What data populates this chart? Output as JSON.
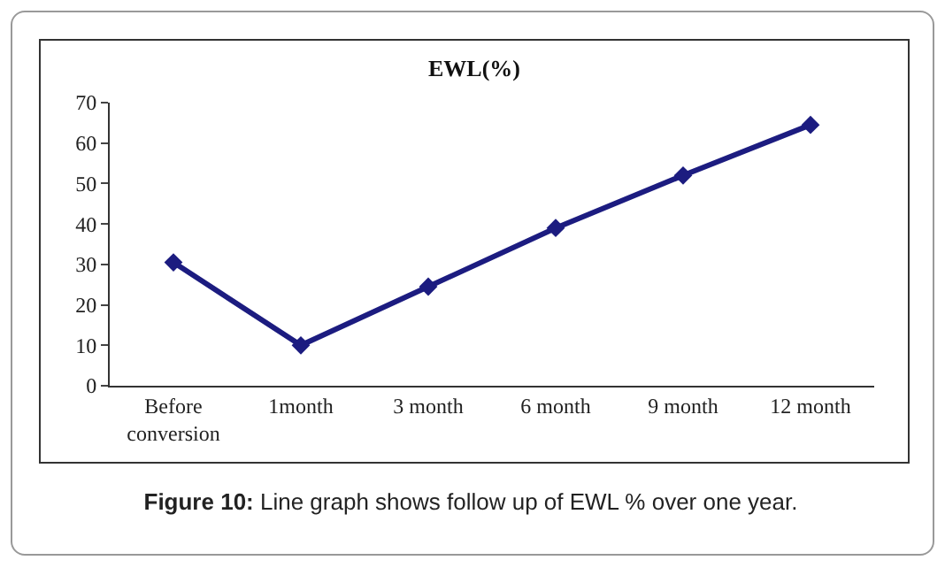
{
  "chart_data": {
    "type": "line",
    "title": "EWL(%)",
    "categories": [
      "Before conversion",
      "1month",
      "3 month",
      "6 month",
      "9 month",
      "12 month"
    ],
    "series": [
      {
        "color": "#1c1c80",
        "values": [
          30.5,
          10,
          24.5,
          39,
          52,
          64.5
        ]
      }
    ],
    "ylim": [
      0,
      70
    ],
    "yticks": [
      0,
      10,
      20,
      30,
      40,
      50,
      60,
      70
    ],
    "grid": false,
    "marker": "diamond",
    "line_style": "solid",
    "annotations": [
      "Figure 10: Line graph shows follow up of EWL % over one year."
    ]
  }
}
